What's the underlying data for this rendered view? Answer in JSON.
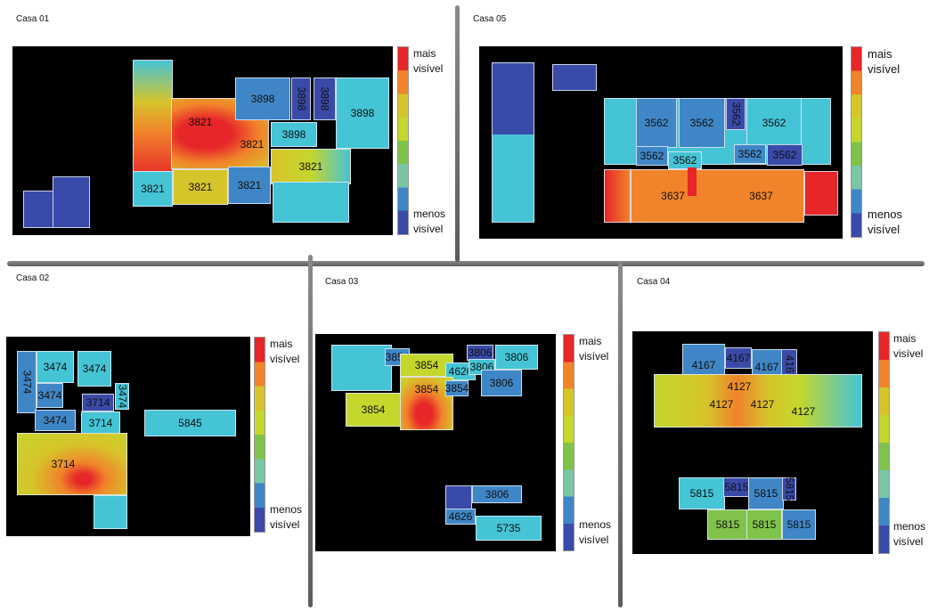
{
  "legend": {
    "high_1": "mais",
    "high_2": "visível",
    "low_1": "menos",
    "low_2": "visível"
  },
  "colors": {
    "red": "#e62629",
    "orange": "#f1832a",
    "yellow": "#d6c42b",
    "lime": "#c5d62c",
    "green": "#7fc34a",
    "teal": "#79c6a5",
    "cyan": "#45c4d6",
    "blue": "#3f86c6",
    "navy": "#3a4aa8"
  },
  "casas": [
    {
      "title": "Casa 01",
      "values": [
        "3898",
        "3898",
        "3898",
        "3898",
        "3821",
        "3821",
        "3898",
        "3821",
        "3821",
        "3821",
        "3821"
      ]
    },
    {
      "title": "Casa 05",
      "values": [
        "3562",
        "3562",
        "3562",
        "3562",
        "3562",
        "3562",
        "3562",
        "3562",
        "3637",
        "3637"
      ]
    },
    {
      "title": "Casa 02",
      "values": [
        "3474",
        "3474",
        "3474",
        "3474",
        "3474",
        "3714",
        "3714",
        "3474",
        "3714",
        "3714",
        "5845"
      ]
    },
    {
      "title": "Casa 03",
      "values": [
        "3854",
        "3854",
        "3806",
        "3806",
        "4626",
        "3806",
        "3854",
        "3854",
        "3806",
        "3854",
        "3806",
        "4626",
        "5735"
      ]
    },
    {
      "title": "Casa 04",
      "values": [
        "4167",
        "4167",
        "4167",
        "4167",
        "4127",
        "4127",
        "4127",
        "4127",
        "5815",
        "5815",
        "5815",
        "5815",
        "5815",
        "5815",
        "5815",
        "5815"
      ]
    }
  ]
}
